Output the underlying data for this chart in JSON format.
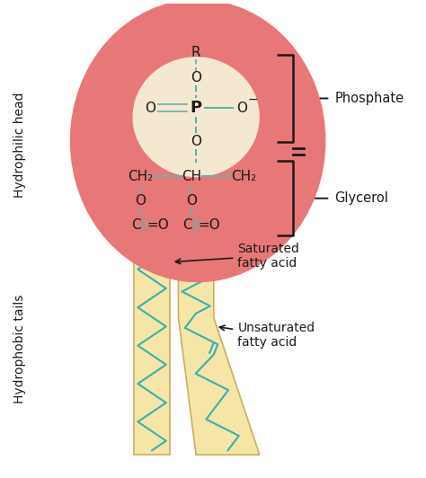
{
  "bg_color": "#ffffff",
  "head_circle_color": "#e87878",
  "head_circle_inner_color": "#f5e8d0",
  "teal_color": "#3aafaf",
  "bond_color": "#6aacac",
  "text_color": "#1a1a1a",
  "tail_fill_color": "#f5e6a8",
  "tail_border_color": "#c8b060",
  "phosphate_label": "Phosphate",
  "glycerol_label": "Glycerol",
  "saturated_label": "Saturated\nfatty acid",
  "unsaturated_label": "Unsaturated\nfatty acid",
  "hydrophilic_label": "Hydrophilic head",
  "hydrophobic_label": "Hydrophobic tails"
}
